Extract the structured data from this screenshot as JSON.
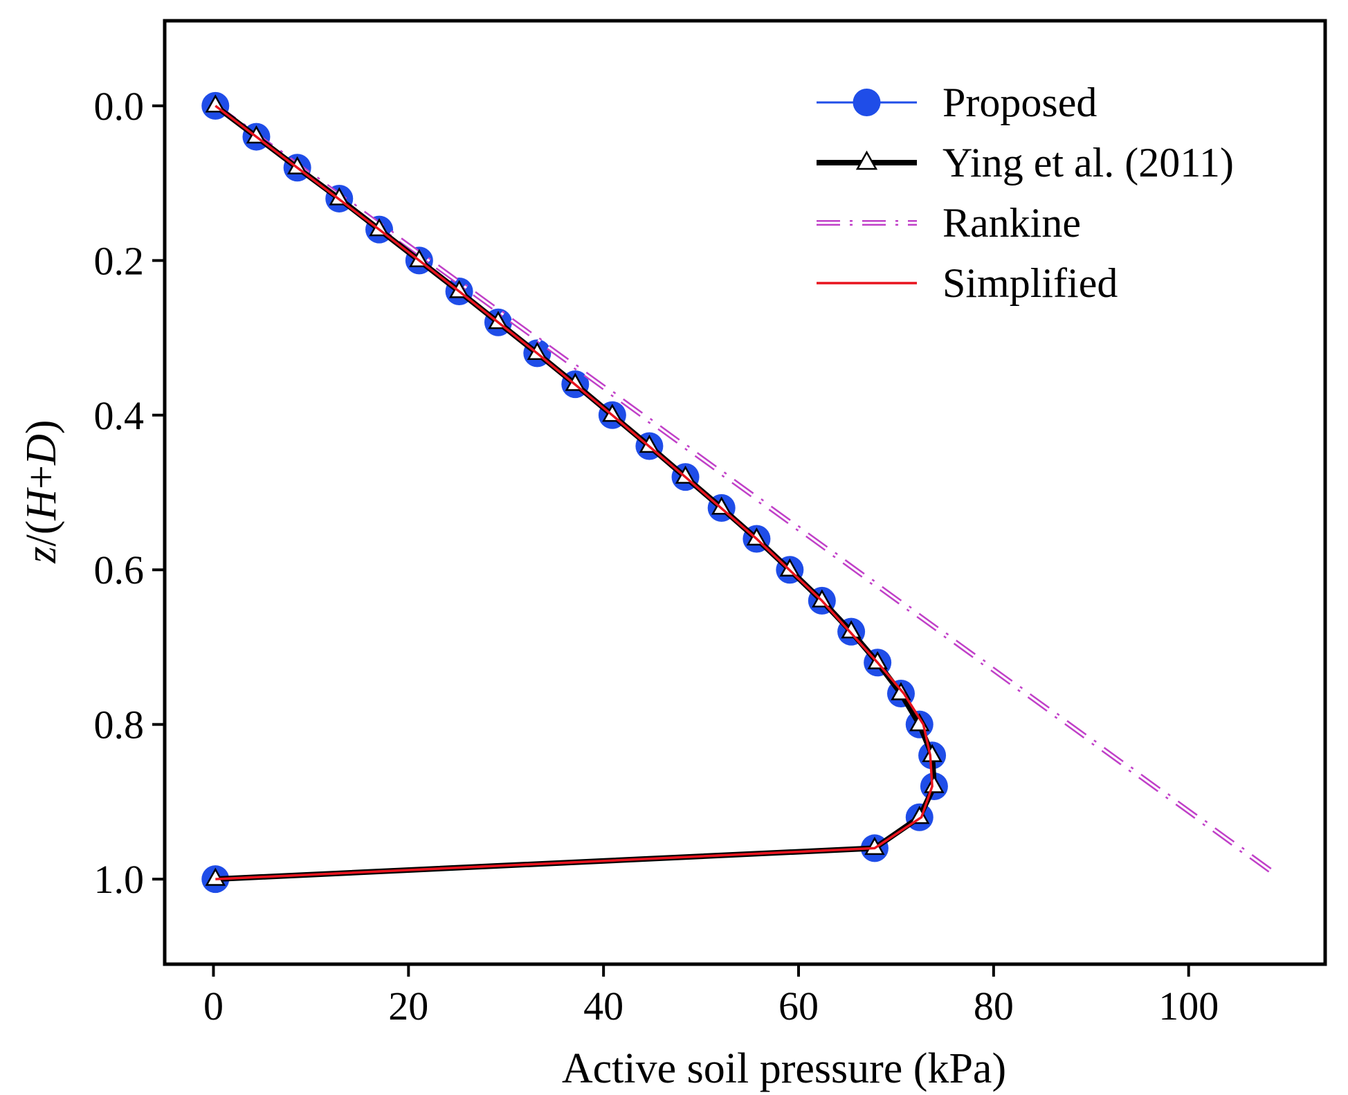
{
  "chart_data": {
    "type": "line",
    "xlabel": "Active soil pressure (kPa)",
    "ylabel": {
      "prefix": "z/(",
      "H": "H",
      "plus": "+",
      "D": "D",
      "suffix": ")"
    },
    "xlim": [
      -5,
      114
    ],
    "ylim": [
      -0.11,
      1.11
    ],
    "y_inverted": true,
    "xticks": [
      0,
      20,
      40,
      60,
      80,
      100
    ],
    "yticks": [
      0.0,
      0.2,
      0.4,
      0.6,
      0.8,
      1.0
    ],
    "xtick_labels": [
      "0",
      "20",
      "40",
      "60",
      "80",
      "100"
    ],
    "ytick_labels": [
      "0.0",
      "0.2",
      "0.4",
      "0.6",
      "0.8",
      "1.0"
    ],
    "grid": false,
    "legend_position": "top-right",
    "series": [
      {
        "name": "Proposed",
        "color": "#1f4de8",
        "marker": "circle",
        "points": [
          [
            0.2,
            0.0
          ],
          [
            4.4,
            0.04
          ],
          [
            8.6,
            0.08
          ],
          [
            12.9,
            0.12
          ],
          [
            17.0,
            0.16
          ],
          [
            21.1,
            0.2
          ],
          [
            25.2,
            0.24
          ],
          [
            29.2,
            0.28
          ],
          [
            33.2,
            0.32
          ],
          [
            37.1,
            0.36
          ],
          [
            40.9,
            0.4
          ],
          [
            44.7,
            0.44
          ],
          [
            48.4,
            0.48
          ],
          [
            52.1,
            0.52
          ],
          [
            55.7,
            0.56
          ],
          [
            59.1,
            0.6
          ],
          [
            62.4,
            0.64
          ],
          [
            65.4,
            0.68
          ],
          [
            68.1,
            0.72
          ],
          [
            70.5,
            0.76
          ],
          [
            72.4,
            0.8
          ],
          [
            73.7,
            0.84
          ],
          [
            73.9,
            0.88
          ],
          [
            72.4,
            0.92
          ],
          [
            67.8,
            0.96
          ],
          [
            0.2,
            1.0
          ]
        ]
      },
      {
        "name": "Ying et al. (2011)",
        "color": "#000000",
        "marker": "triangle",
        "points": [
          [
            0.2,
            0.0
          ],
          [
            4.4,
            0.04
          ],
          [
            8.6,
            0.08
          ],
          [
            12.9,
            0.12
          ],
          [
            17.0,
            0.16
          ],
          [
            21.1,
            0.2
          ],
          [
            25.2,
            0.24
          ],
          [
            29.2,
            0.28
          ],
          [
            33.2,
            0.32
          ],
          [
            37.1,
            0.36
          ],
          [
            40.9,
            0.4
          ],
          [
            44.7,
            0.44
          ],
          [
            48.4,
            0.48
          ],
          [
            52.1,
            0.52
          ],
          [
            55.7,
            0.56
          ],
          [
            59.1,
            0.6
          ],
          [
            62.4,
            0.64
          ],
          [
            65.4,
            0.68
          ],
          [
            68.1,
            0.72
          ],
          [
            70.5,
            0.76
          ],
          [
            72.4,
            0.8
          ],
          [
            73.7,
            0.84
          ],
          [
            73.9,
            0.88
          ],
          [
            72.4,
            0.92
          ],
          [
            67.8,
            0.96
          ],
          [
            0.2,
            1.0
          ]
        ]
      },
      {
        "name": "Rankine",
        "color": "#c040c8",
        "style": "dash-dot",
        "points": [
          [
            0.2,
            0.0
          ],
          [
            108.5,
            0.99
          ]
        ]
      },
      {
        "name": "Simplified",
        "color": "#e8141e",
        "style": "solid",
        "points": [
          [
            0.2,
            0.0
          ],
          [
            8.6,
            0.08
          ],
          [
            17.0,
            0.16
          ],
          [
            25.2,
            0.24
          ],
          [
            33.2,
            0.32
          ],
          [
            40.9,
            0.4
          ],
          [
            48.4,
            0.48
          ],
          [
            55.7,
            0.56
          ],
          [
            62.4,
            0.64
          ],
          [
            68.1,
            0.72
          ],
          [
            70.8,
            0.76
          ],
          [
            72.8,
            0.8
          ],
          [
            73.5,
            0.84
          ],
          [
            73.7,
            0.88
          ],
          [
            72.6,
            0.92
          ],
          [
            67.8,
            0.96
          ],
          [
            0.2,
            1.0
          ]
        ]
      }
    ]
  }
}
